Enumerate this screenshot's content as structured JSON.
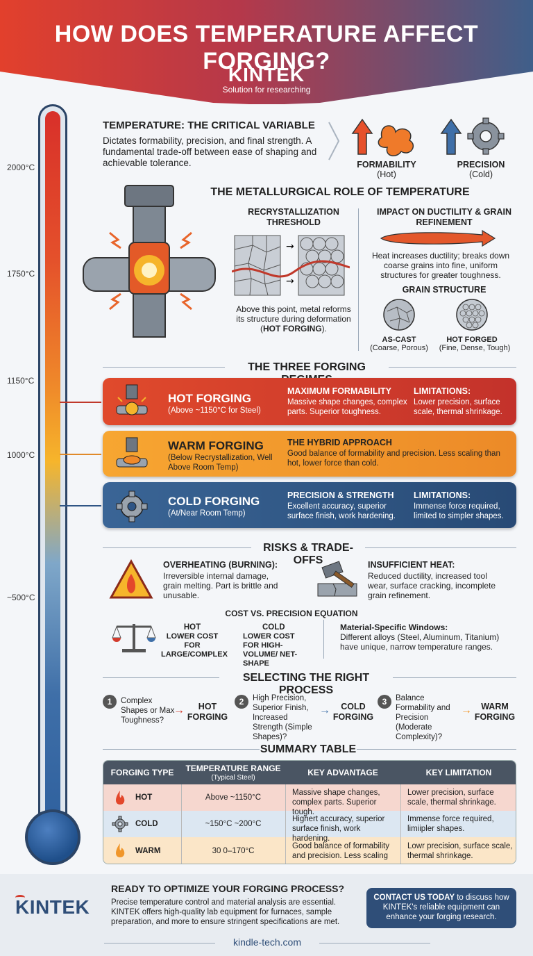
{
  "header": {
    "title": "HOW DOES TEMPERATURE AFFECT FORGING?",
    "brand": "KINTEK",
    "tagline": "Solution for researching"
  },
  "thermometer": {
    "labels": [
      "2000°C",
      "1750°C",
      "1150°C",
      "1000°C",
      "~500°C"
    ]
  },
  "intro": {
    "title": "TEMPERATURE: THE CRITICAL VARIABLE",
    "body": "Dictates formability, precision, and final strength. A fundamental trade-off between ease of shaping and achievable tolerance.",
    "formability_label": "FORMABILITY",
    "formability_sub": "(Hot)",
    "precision_label": "PRECISION",
    "precision_sub": "(Cold)"
  },
  "metallurgy": {
    "title": "THE METALLURGICAL ROLE OF TEMPERATURE",
    "recryst_title": "RECRYSTALLIZATION THRESHOLD",
    "recryst_body_1": "Above this point, metal reforms its structure during deformation (",
    "recryst_body_bold": "HOT FORGING",
    "recryst_body_2": ").",
    "ductility_title": "IMPACT ON DUCTILITY & GRAIN REFINEMENT",
    "ductility_body": "Heat increases ductility; breaks down coarse grains into fine, uniform structures for greater toughness.",
    "grain_title": "GRAIN STRUCTURE",
    "ascast_label": "AS-CAST",
    "ascast_sub": "(Coarse, Porous)",
    "hotforged_label": "HOT FORGED",
    "hotforged_sub": "(Fine, Dense, Tough)"
  },
  "regimes": {
    "title": "THE THREE FORGING REGIMES",
    "hot": {
      "name": "HOT FORGING",
      "sub": "(Above ~1150°C for Steel)",
      "h1": "MAXIMUM FORMABILITY",
      "d1": "Massive shape changes, complex parts. Superior toughness.",
      "h2": "LIMITATIONS:",
      "d2": "Lower precision, surface scale, thermal shrinkage.",
      "color": "#d23a2c"
    },
    "warm": {
      "name": "WARM FORGING",
      "sub": "(Below Recrystallization, Well Above Room Temp)",
      "h1": "THE HYBRID APPROACH",
      "d1": "Good balance of formability and precision. Less scaling than hot, lower force than cold.",
      "color": "#f0962a"
    },
    "cold": {
      "name": "COLD FORGING",
      "sub": "(At/Near Room Temp)",
      "h1": "PRECISION & STRENGTH",
      "d1": "Excellent accuracy, superior surface finish, work hardening.",
      "h2": "LIMITATIONS:",
      "d2": "Immense force required, limited to simpler shapes.",
      "color": "#2f5585"
    }
  },
  "risks": {
    "title": "RISKS & TRADE-OFFS",
    "overheat_title": "OVERHEATING (BURNING):",
    "overheat_body": "Irreversible internal damage, grain melting. Part is brittle and unusable.",
    "insufficient_title": "INSUFFICIENT HEAT:",
    "insufficient_body": "Reduced ductility, increased tool wear, surface cracking, incomplete grain refinement.",
    "cost_title": "COST VS. PRECISION EQUATION",
    "hot_label": "HOT",
    "hot_body": "LOWER COST FOR LARGE/COMPLEX",
    "cold_label": "COLD",
    "cold_body": "LOWER COST FOR HIGH-VOLUME/ NET-SHAPE",
    "material_title": "Material-Specific Windows:",
    "material_body": "Different alloys (Steel, Aluminum, Titanium) have unique, narrow temperature ranges."
  },
  "selecting": {
    "title": "SELECTING THE RIGHT PROCESS",
    "steps": [
      {
        "num": "1",
        "text": "Complex Shapes or Max Toughness?",
        "result": "HOT FORGING"
      },
      {
        "num": "2",
        "text": "High Precision, Superior Finish, Increased Strength (Simple Shapes)?",
        "result": "COLD FORGING"
      },
      {
        "num": "3",
        "text": "Balance Formability and Precision (Moderate Complexity)?",
        "result": "WARM FORGING"
      }
    ]
  },
  "summary": {
    "title": "SUMMARY TABLE",
    "headers": [
      "FORGING TYPE",
      "TEMPERATURE RANGE",
      "(Typical Steel)",
      "KEY ADVANTAGE",
      "KEY LIMITATION"
    ],
    "rows": [
      {
        "type": "HOT",
        "range": "Above ~1150°C",
        "advantage": "Massive shape changes, complex parts. Superior tough.",
        "limitation": "Lower precision, surface scale, thermal shrinkage."
      },
      {
        "type": "COLD",
        "range": "~150°C ~200°C",
        "advantage": "Highert accuracy, superior surface finish, work hardening.",
        "limitation": "Immense force required, limiipler shapes."
      },
      {
        "type": "WARM",
        "range": "30 0–170°C",
        "advantage": "Good balance of formability and precision. Less scaling",
        "limitation": "Lowr precision, surface scale, thermal shrinkage."
      }
    ]
  },
  "footer": {
    "brand": "KINTEK",
    "heading": "READY TO OPTIMIZE YOUR FORGING PROCESS?",
    "body": "Precise temperature control and material analysis are essential. KINTEK offers high-quality lab equipment for furnaces, sample preparation, and more to ensure stringent specifications are met.",
    "cta_bold": "CONTACT US TODAY",
    "cta_rest": " to discuss how KINTEK's reliable equipment can enhance your forging research.",
    "url": "kindle-tech.com"
  }
}
